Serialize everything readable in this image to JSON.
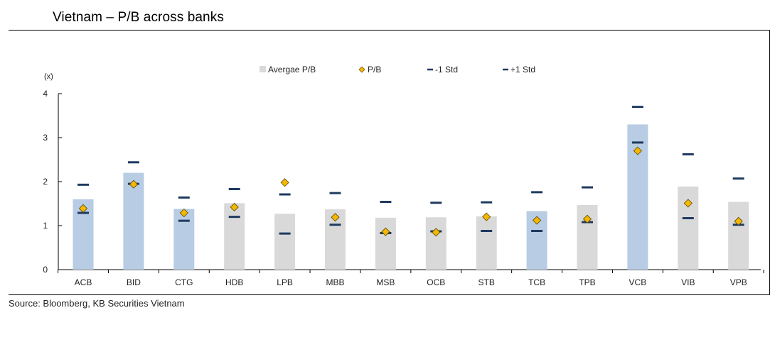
{
  "title": "Vietnam – P/B across banks",
  "source": "Source: Bloomberg, KB Securities Vietnam",
  "chart_data": {
    "type": "bar",
    "title": "Vietnam – P/B across banks",
    "ylabel": "(x)",
    "ylim": [
      0,
      4
    ],
    "yticks": [
      0,
      1,
      2,
      3,
      4
    ],
    "categories": [
      "ACB",
      "BID",
      "CTG",
      "HDB",
      "LPB",
      "MBB",
      "MSB",
      "OCB",
      "STB",
      "TCB",
      "TPB",
      "VCB",
      "VIB",
      "VPB"
    ],
    "highlighted": [
      "ACB",
      "BID",
      "CTG",
      "TCB",
      "VCB"
    ],
    "colors": {
      "bar_highlight": "#b8cce4",
      "bar_default": "#d9d9d9",
      "pb_marker": "#f5b800",
      "std_marker": "#1f3a5f"
    },
    "legend": [
      "Avergae P/B",
      "P/B",
      "-1 Std",
      "+1 Std"
    ],
    "legend_position": "top",
    "grid": false,
    "series": [
      {
        "name": "Avergae P/B",
        "type": "bar",
        "values": [
          1.6,
          2.2,
          1.38,
          1.51,
          1.27,
          1.37,
          1.18,
          1.19,
          1.21,
          1.33,
          1.47,
          3.3,
          1.89,
          1.54
        ]
      },
      {
        "name": "P/B",
        "type": "marker",
        "values": [
          1.39,
          1.94,
          1.29,
          1.42,
          1.98,
          1.19,
          0.86,
          0.85,
          1.2,
          1.12,
          1.15,
          2.7,
          1.51,
          1.1
        ]
      },
      {
        "name": "-1 Std",
        "type": "marker",
        "values": [
          1.29,
          1.95,
          1.11,
          1.2,
          0.82,
          1.02,
          0.83,
          0.87,
          0.88,
          0.88,
          1.08,
          2.89,
          1.17,
          1.02
        ]
      },
      {
        "name": "+1 Std",
        "type": "marker",
        "values": [
          1.93,
          2.44,
          1.64,
          1.83,
          1.71,
          1.74,
          1.54,
          1.52,
          1.53,
          1.76,
          1.87,
          3.7,
          2.62,
          2.07
        ]
      }
    ]
  }
}
